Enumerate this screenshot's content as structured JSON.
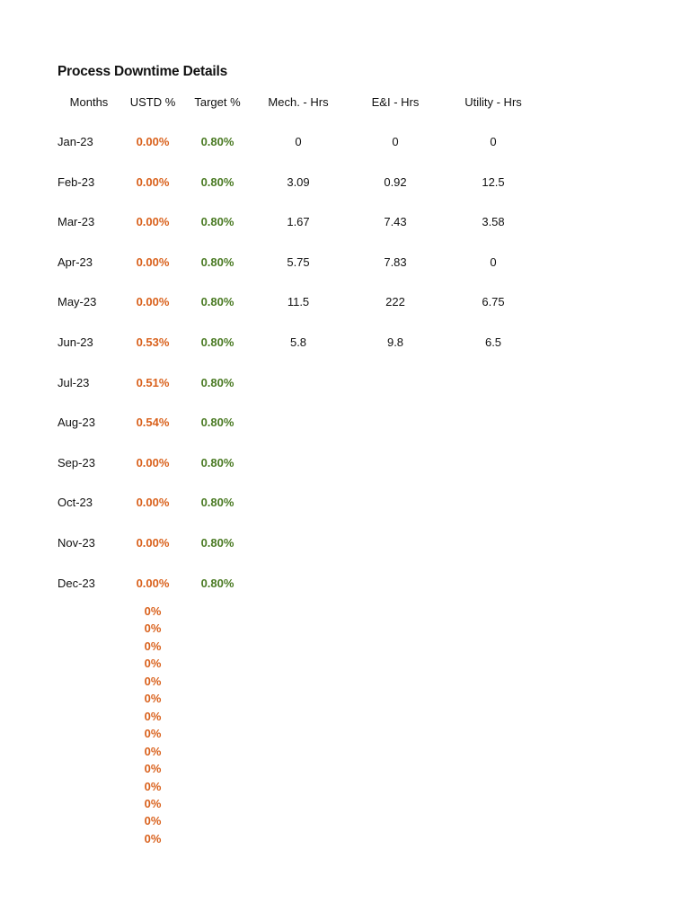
{
  "title": "Process Downtime Details",
  "headers": {
    "months": "Months",
    "ustd": "USTD %",
    "target": "Target %",
    "mech": "Mech. - Hrs",
    "ei": "E&I - Hrs",
    "utility": "Utility - Hrs"
  },
  "rows": [
    {
      "month": "Jan-23",
      "ustd": "0.00%",
      "target": "0.80%",
      "mech": "0",
      "ei": "0",
      "utility": "0"
    },
    {
      "month": "Feb-23",
      "ustd": "0.00%",
      "target": "0.80%",
      "mech": "3.09",
      "ei": "0.92",
      "utility": "12.5"
    },
    {
      "month": "Mar-23",
      "ustd": "0.00%",
      "target": "0.80%",
      "mech": "1.67",
      "ei": "7.43",
      "utility": "3.58"
    },
    {
      "month": "Apr-23",
      "ustd": "0.00%",
      "target": "0.80%",
      "mech": "5.75",
      "ei": "7.83",
      "utility": "0"
    },
    {
      "month": "May-23",
      "ustd": "0.00%",
      "target": "0.80%",
      "mech": "11.5",
      "ei": "222",
      "utility": "6.75"
    },
    {
      "month": "Jun-23",
      "ustd": "0.53%",
      "target": "0.80%",
      "mech": "5.8",
      "ei": "9.8",
      "utility": "6.5"
    },
    {
      "month": "Jul-23",
      "ustd": "0.51%",
      "target": "0.80%",
      "mech": "",
      "ei": "",
      "utility": ""
    },
    {
      "month": "Aug-23",
      "ustd": "0.54%",
      "target": "0.80%",
      "mech": "",
      "ei": "",
      "utility": ""
    },
    {
      "month": "Sep-23",
      "ustd": "0.00%",
      "target": "0.80%",
      "mech": "",
      "ei": "",
      "utility": ""
    },
    {
      "month": "Oct-23",
      "ustd": "0.00%",
      "target": "0.80%",
      "mech": "",
      "ei": "",
      "utility": ""
    },
    {
      "month": "Nov-23",
      "ustd": "0.00%",
      "target": "0.80%",
      "mech": "",
      "ei": "",
      "utility": ""
    },
    {
      "month": "Dec-23",
      "ustd": "0.00%",
      "target": "0.80%",
      "mech": "",
      "ei": "",
      "utility": ""
    }
  ],
  "extra_values": [
    "0%",
    "0%",
    "0%",
    "0%",
    "0%",
    "0%",
    "0%",
    "0%",
    "0%",
    "0%",
    "0%",
    "0%",
    "0%",
    "0%"
  ],
  "colors": {
    "ustd": "#d9611c",
    "target": "#4a7a23",
    "text": "#111111"
  }
}
